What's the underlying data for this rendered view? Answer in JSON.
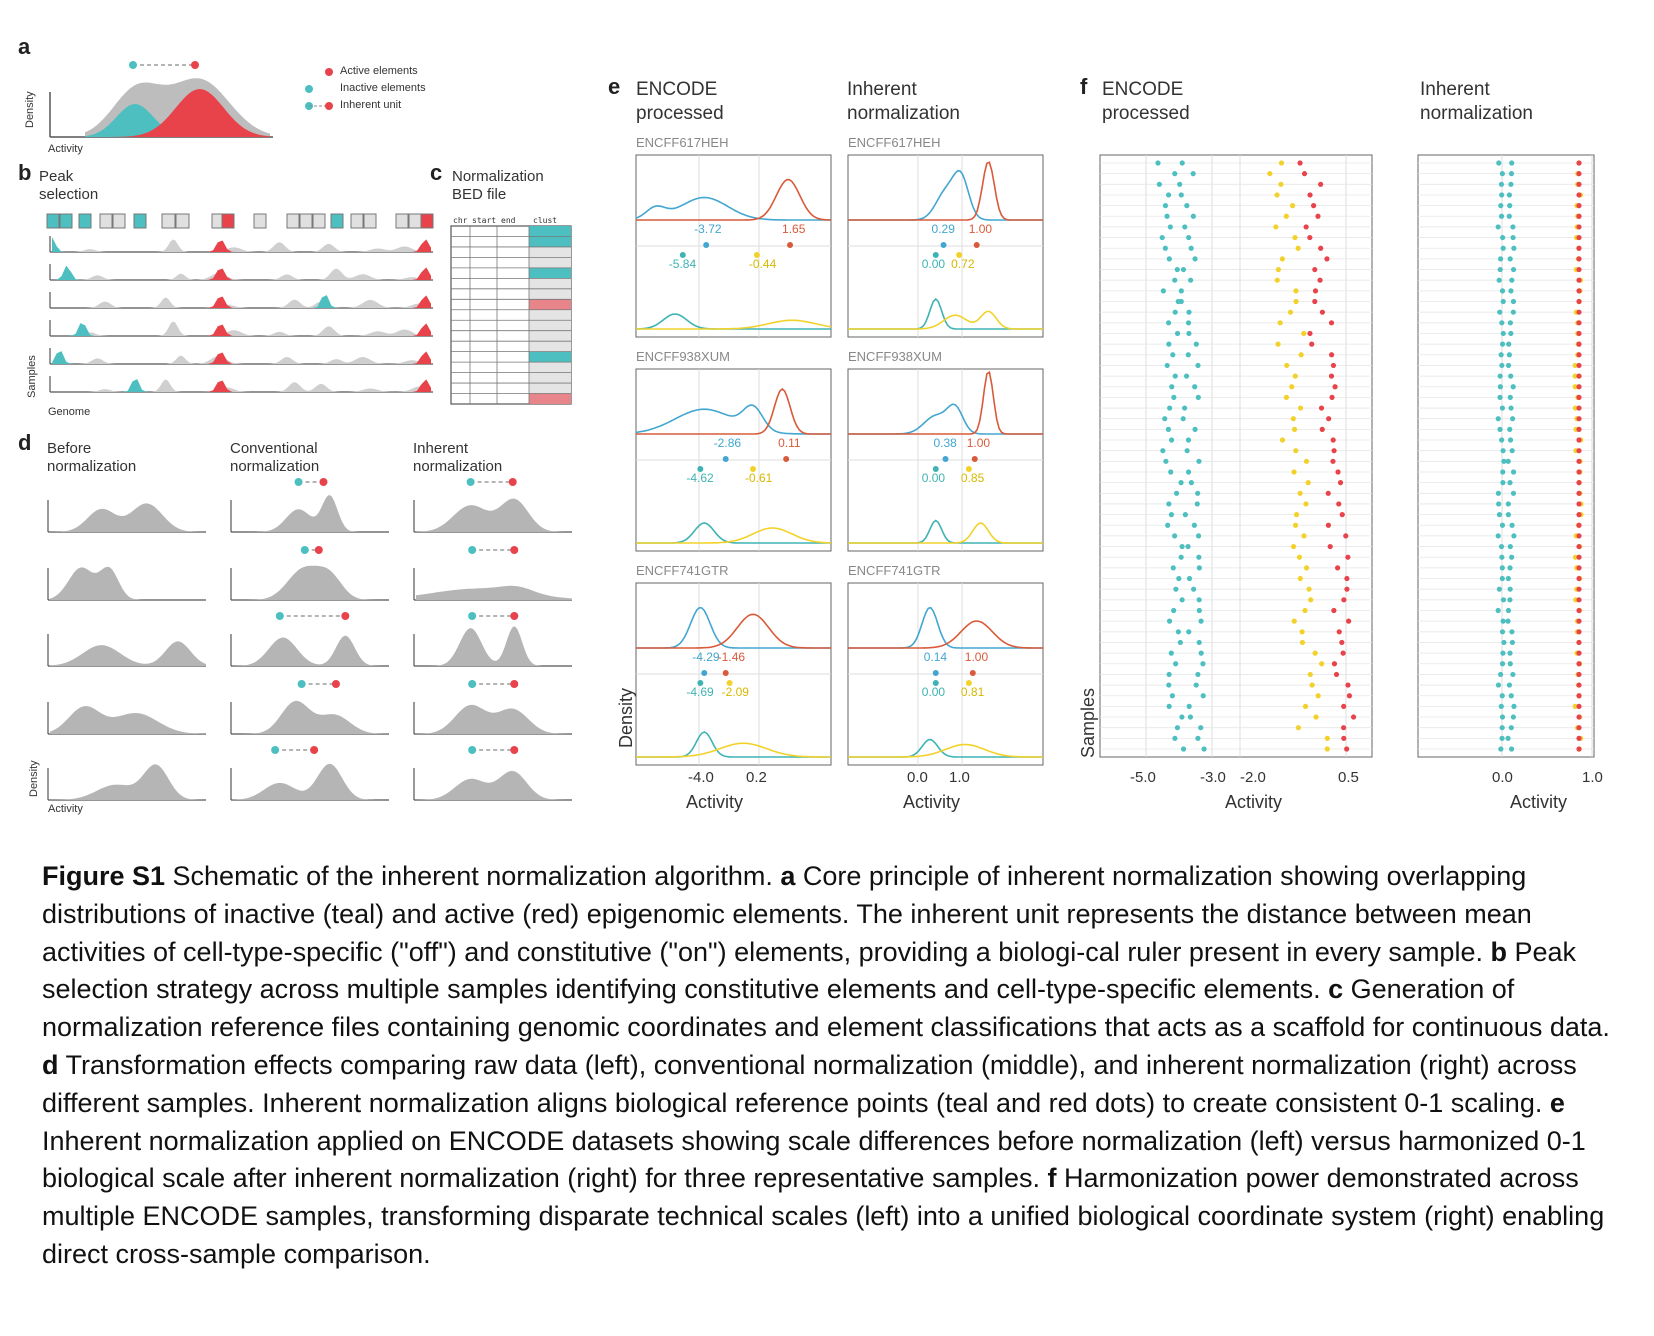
{
  "colors": {
    "teal": "#4dbfc0",
    "red": "#e8434b",
    "yellow": "#f2d22a",
    "gray": "#bdbdbd",
    "line": "#555555",
    "orange": "#d95a3a",
    "blue": "#43a6d0"
  },
  "panel_a": {
    "label": "a",
    "legend": [
      "Active elements",
      "Inactive elements",
      "Inherent unit"
    ],
    "ylabel": "Density",
    "xlabel": "Activity"
  },
  "panel_b": {
    "label": "b",
    "title": "Peak\nselection",
    "ylabel": "Samples",
    "xlabel": "Genome"
  },
  "panel_c": {
    "label": "c",
    "title": "Normalization\nBED file",
    "columns": [
      "chr",
      "start",
      "end",
      "clust"
    ]
  },
  "panel_d": {
    "label": "d",
    "titles": [
      "Before\nnormalization",
      "Conventional\nnormalization",
      "Inherent\nnormalization"
    ],
    "ylabel": "Density",
    "xlabel": "Activity"
  },
  "panel_e": {
    "label": "e",
    "titles": [
      "ENCODE\nprocessed",
      "Inherent\nnormalization"
    ],
    "samples": [
      {
        "id": "ENCFF617HEH",
        "left": {
          "top": [
            "-3.72",
            "1.65"
          ],
          "bottom": [
            "-5.84",
            "-0.44"
          ]
        },
        "right": {
          "top": [
            "0.29",
            "1.00"
          ],
          "bottom": [
            "0.00",
            "0.72"
          ]
        }
      },
      {
        "id": "ENCFF938XUM",
        "left": {
          "top": [
            "-2.86",
            "0.11"
          ],
          "bottom": [
            "-4.62",
            "-0.61"
          ]
        },
        "right": {
          "top": [
            "0.38",
            "1.00"
          ],
          "bottom": [
            "0.00",
            "0.85"
          ]
        }
      },
      {
        "id": "ENCFF741GTR",
        "left": {
          "top": [
            "-4.29",
            "-1.46"
          ],
          "bottom": [
            "-4.69",
            "-2.09"
          ]
        },
        "right": {
          "top": [
            "0.14",
            "1.00"
          ],
          "bottom": [
            "0.00",
            "0.81"
          ]
        }
      }
    ],
    "ylabel": "Density",
    "xlabel": "Activity",
    "left_ticks": [
      "-4.0",
      "0.2"
    ],
    "right_ticks": [
      "0.0",
      "1.0"
    ]
  },
  "panel_f": {
    "label": "f",
    "titles": [
      "ENCODE\nprocessed",
      "Inherent\nnormalization"
    ],
    "ylabel": "Samples",
    "xlabel": "Activity",
    "left_ticks": [
      "-5.0",
      "-3.0",
      "-2.0",
      "0.5"
    ],
    "right_ticks": [
      "0.0",
      "1.0"
    ],
    "n_samples": 56
  },
  "caption": [
    {
      "b": "Figure S1",
      "t": " Schematic of the inherent normalization algorithm. "
    },
    {
      "b": "a",
      "t": " Core principle of inherent normalization showing overlapping distributions of inactive (teal) and active (red) epigenomic elements. The inherent unit represents the distance between mean activities of cell-type-specific (\"off\") and constitutive (\"on\") elements, providing a biologi-cal ruler present in every sample. "
    },
    {
      "b": "b",
      "t": " Peak selection strategy across multiple samples identifying constitutive elements and cell-type-specific elements. "
    },
    {
      "b": "c",
      "t": " Generation of normalization reference files containing genomic coordinates and element classifications that acts as a scaffold for continuous data. "
    },
    {
      "b": "d",
      "t": " Transformation effects comparing raw data (left), conventional normalization (middle), and inherent normalization (right) across different samples. Inherent normalization aligns biological reference points (teal and red dots) to create consistent 0-1 scaling. "
    },
    {
      "b": "e",
      "t": " Inherent normalization applied on ENCODE datasets showing scale differences before normalization (left) versus harmonized 0-1 biological scale after inherent normalization (right) for three representative samples. "
    },
    {
      "b": "f",
      "t": "  Harmonization power demonstrated across multiple ENCODE samples, transforming disparate technical scales (left) into a unified biological coordinate system (right) enabling direct cross-sample comparison."
    }
  ]
}
